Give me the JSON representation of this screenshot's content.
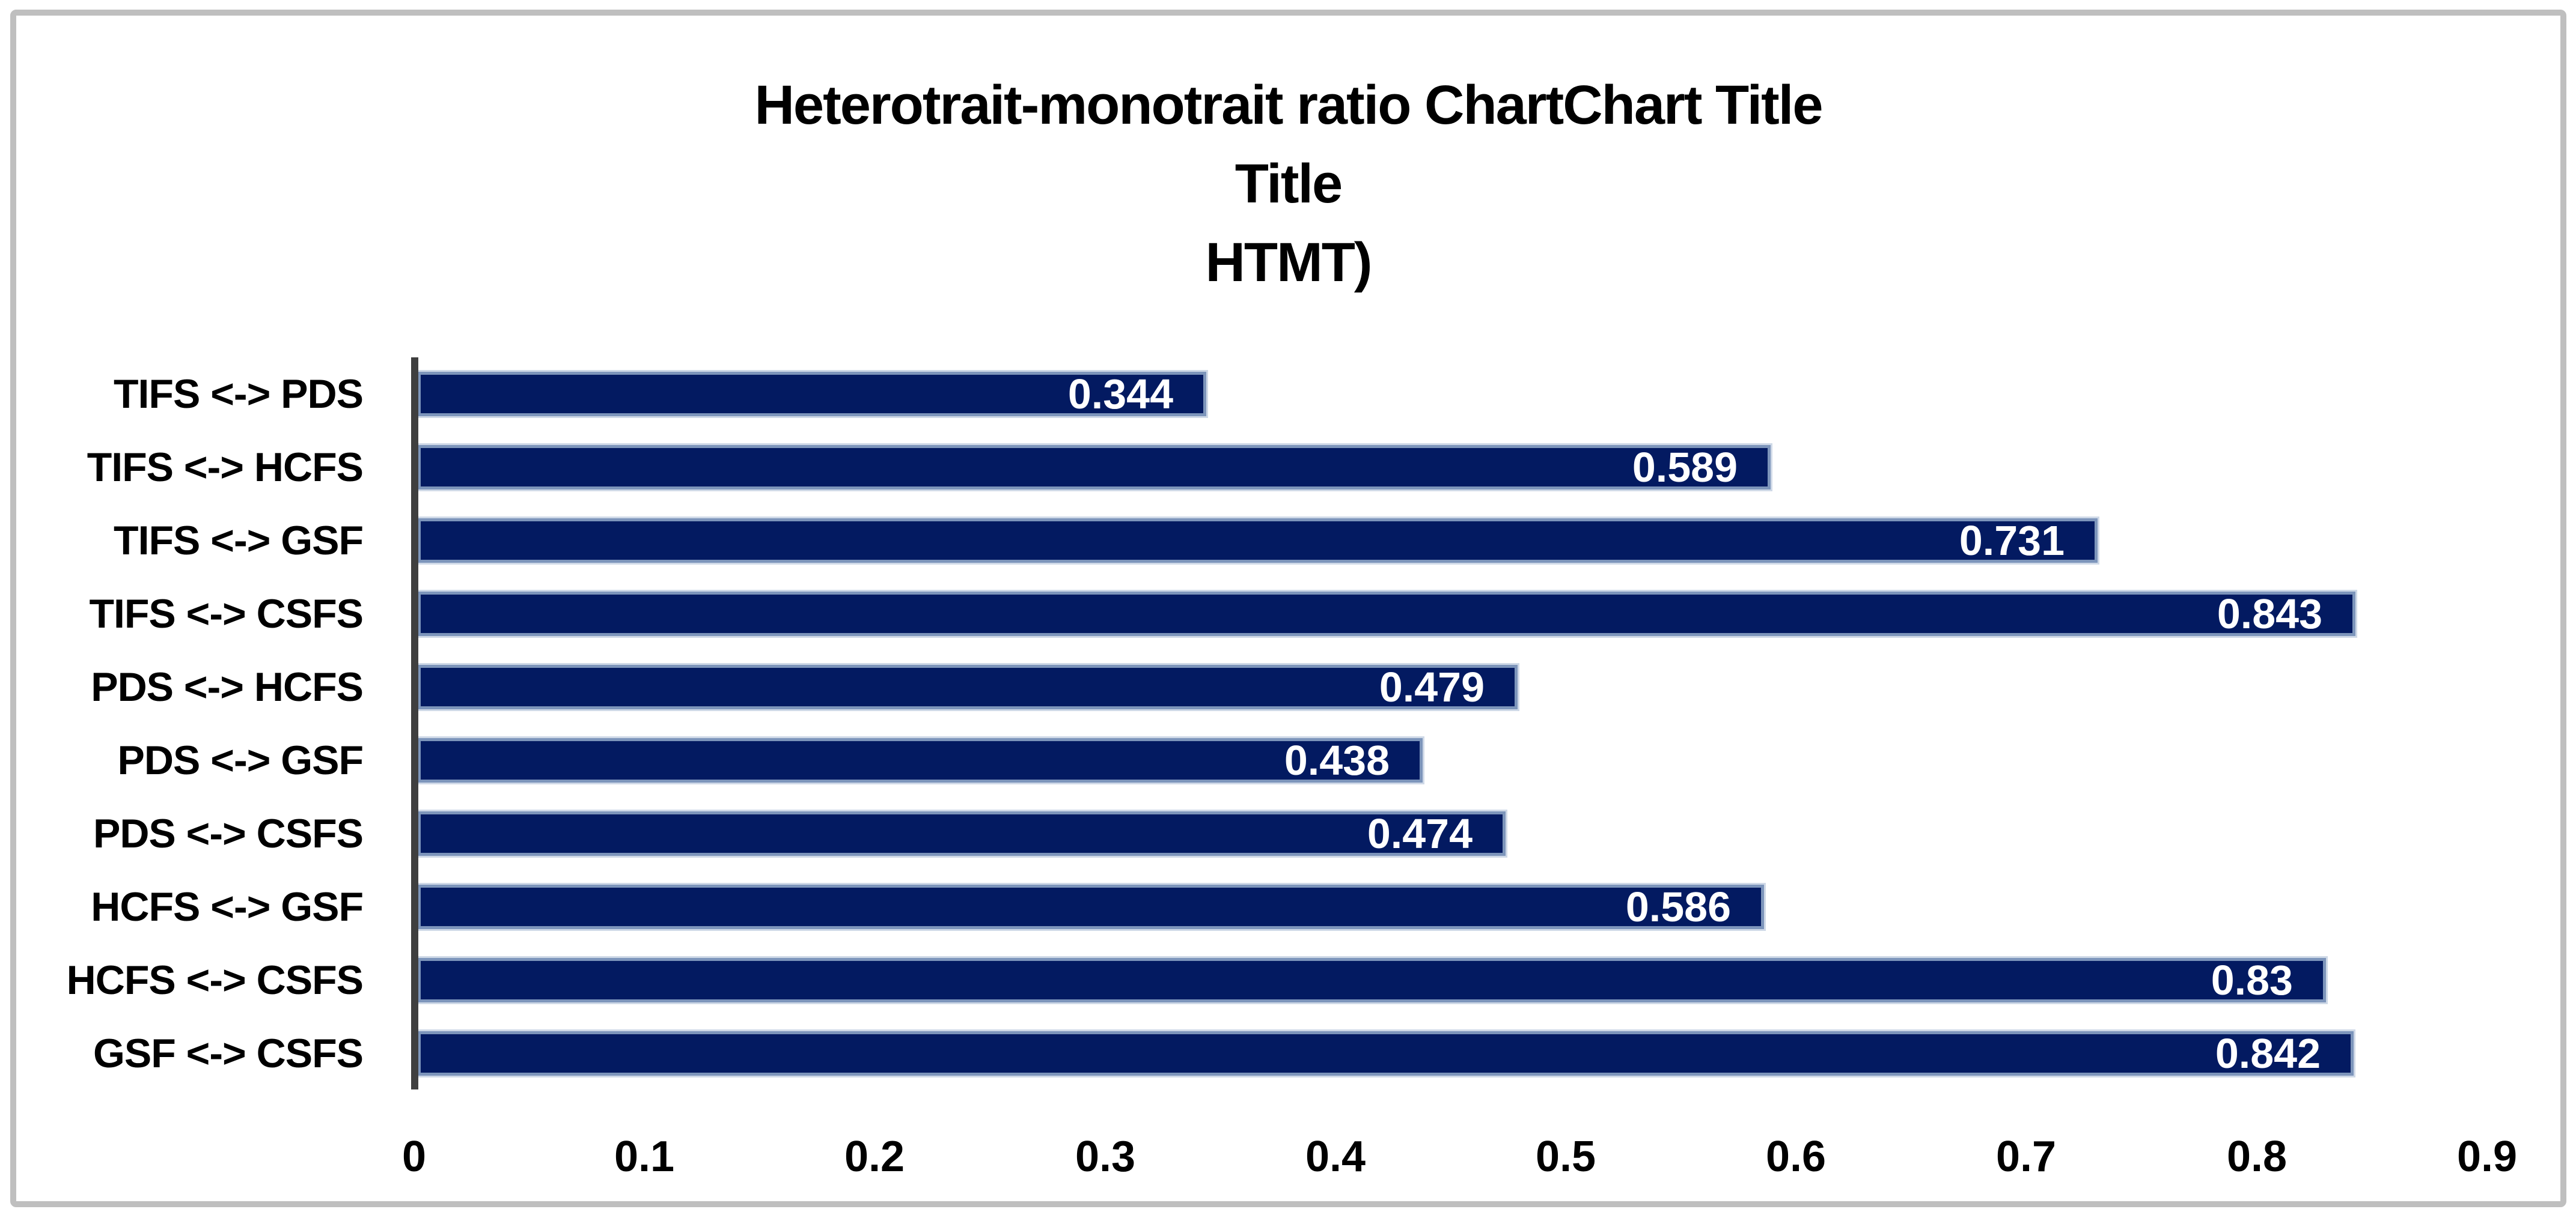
{
  "chart_data": {
    "type": "bar",
    "orientation": "horizontal",
    "title_lines": [
      "Heterotrait-monotrait ratio ChartChart Title",
      "Title",
      "HTMT)"
    ],
    "categories": [
      "TIFS <-> PDS",
      "TIFS <-> HCFS",
      "TIFS <-> GSF",
      "TIFS <-> CSFS",
      "PDS <-> HCFS",
      "PDS <-> GSF",
      "PDS <-> CSFS",
      "HCFS <-> GSF",
      "HCFS <-> CSFS",
      "GSF <-> CSFS"
    ],
    "values": [
      0.344,
      0.589,
      0.731,
      0.843,
      0.479,
      0.438,
      0.474,
      0.586,
      0.83,
      0.842
    ],
    "value_labels": [
      "0.344",
      "0.589",
      "0.731",
      "0.843",
      "0.479",
      "0.438",
      "0.474",
      "0.586",
      "0.83",
      "0.842"
    ],
    "x_ticks": [
      "0",
      "0.1",
      "0.2",
      "0.3",
      "0.4",
      "0.5",
      "0.6",
      "0.7",
      "0.8",
      "0.9"
    ],
    "xlim": [
      0,
      0.9
    ],
    "grid": false,
    "legend_position": "none",
    "xlabel": "",
    "ylabel": "",
    "colors": {
      "bar_fill": "#031A61",
      "bar_border": "#7D95BB",
      "bar_border_outer": "#CFD9E7",
      "axis_line": "#3F3F3F",
      "frame_border": "#BFBFBF",
      "value_label_text": "#FFFFFF",
      "label_text": "#000000",
      "background": "#FFFFFF"
    }
  }
}
